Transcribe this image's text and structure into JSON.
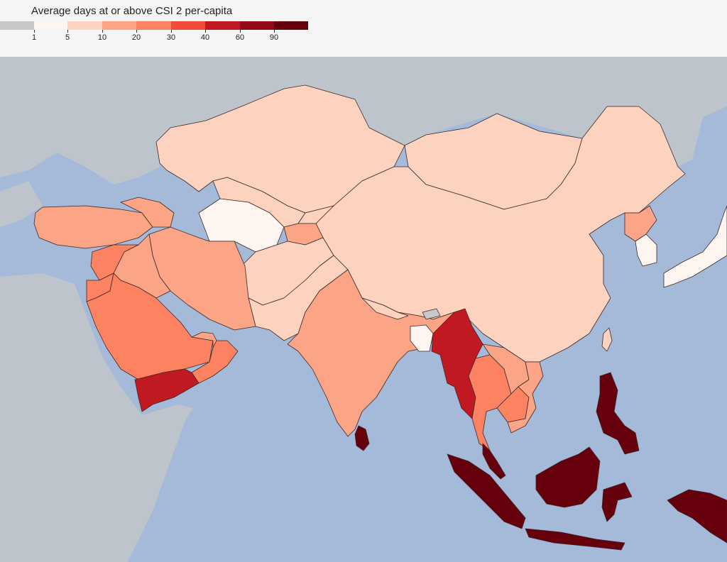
{
  "legend": {
    "title": "Average days at or above CSI 2 per-capita",
    "bins": [
      {
        "color": "#c8c8c8",
        "label": "1"
      },
      {
        "color": "#fff5f0",
        "label": "5"
      },
      {
        "color": "#fdd2bf",
        "label": "10"
      },
      {
        "color": "#fca486",
        "label": "20"
      },
      {
        "color": "#fc8262",
        "label": "30"
      },
      {
        "color": "#f24a35",
        "label": "40"
      },
      {
        "color": "#c01921",
        "label": "60"
      },
      {
        "color": "#910a15",
        "label": "90"
      },
      {
        "color": "#67000d",
        "label": ""
      }
    ]
  },
  "colors": {
    "ocean": "#a4bad8",
    "land_nodata": "#bec4cc",
    "border": "#3a2a2a"
  },
  "regions": [
    {
      "name": "kazakhstan",
      "bin": "10"
    },
    {
      "name": "china",
      "bin": "10"
    },
    {
      "name": "mongolia",
      "bin": "10"
    },
    {
      "name": "uzbekistan",
      "bin": "10"
    },
    {
      "name": "kyrgyzstan",
      "bin": "10"
    },
    {
      "name": "afghanistan",
      "bin": "10"
    },
    {
      "name": "pakistan",
      "bin": "10"
    },
    {
      "name": "nepal",
      "bin": "10"
    },
    {
      "name": "turkmenistan",
      "bin": "5"
    },
    {
      "name": "south-korea",
      "bin": "5"
    },
    {
      "name": "bangladesh",
      "bin": "5"
    },
    {
      "name": "north-korea",
      "bin": "20"
    },
    {
      "name": "japan",
      "bin": "5"
    },
    {
      "name": "turkey",
      "bin": "20"
    },
    {
      "name": "caucasus",
      "bin": "20"
    },
    {
      "name": "iran",
      "bin": "20"
    },
    {
      "name": "iraq",
      "bin": "20"
    },
    {
      "name": "syria",
      "bin": "30"
    },
    {
      "name": "jordan",
      "bin": "30"
    },
    {
      "name": "saudi-arabia",
      "bin": "30"
    },
    {
      "name": "oman",
      "bin": "30"
    },
    {
      "name": "uae",
      "bin": "20"
    },
    {
      "name": "yemen",
      "bin": "60"
    },
    {
      "name": "tajikistan",
      "bin": "20"
    },
    {
      "name": "india",
      "bin": "20"
    },
    {
      "name": "sri-lanka",
      "bin": "90"
    },
    {
      "name": "myanmar",
      "bin": "60"
    },
    {
      "name": "thailand",
      "bin": "30"
    },
    {
      "name": "laos",
      "bin": "20"
    },
    {
      "name": "cambodia",
      "bin": "30"
    },
    {
      "name": "vietnam",
      "bin": "20"
    },
    {
      "name": "philippines",
      "bin": "90"
    },
    {
      "name": "malaysia-peninsula",
      "bin": "90"
    },
    {
      "name": "sumatra",
      "bin": "90"
    },
    {
      "name": "java",
      "bin": "90"
    },
    {
      "name": "borneo",
      "bin": "90"
    },
    {
      "name": "sulawesi",
      "bin": "90"
    },
    {
      "name": "new-guinea",
      "bin": "90"
    },
    {
      "name": "taiwan",
      "bin": "10"
    },
    {
      "name": "bhutan",
      "bin": "1"
    }
  ]
}
